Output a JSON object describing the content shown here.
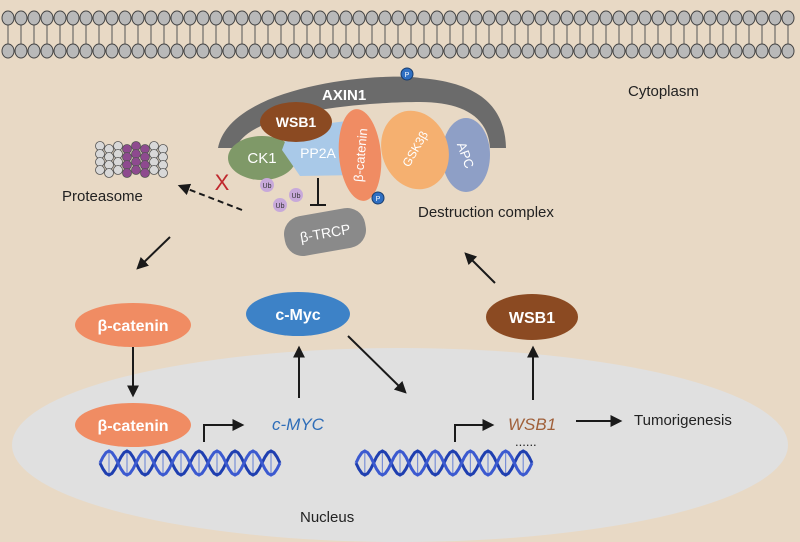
{
  "labels": {
    "cytoplasm": "Cytoplasm",
    "nucleus": "Nucleus",
    "proteasome": "Proteasome",
    "destruction_complex": "Destruction complex",
    "tumorigenesis": "Tumorigenesis"
  },
  "complex": {
    "axin1": "AXIN1",
    "wsb1": "WSB1",
    "ck1": "CK1",
    "pp2a": "PP2A",
    "beta_catenin": "β-catenin",
    "gsk3b": "GSK3β",
    "apc": "APC",
    "btrcp": "β-TRCP",
    "phospho": "P",
    "ub": "Ub",
    "block_mark": "X"
  },
  "nodes": {
    "beta_catenin_cyto": "β-catenin",
    "cmyc_protein": "c-Myc",
    "wsb1_protein": "WSB1",
    "beta_catenin_nuc": "β-catenin",
    "cmyc_gene": "c-MYC",
    "wsb1_gene": "WSB1",
    "ellipsis": "......"
  },
  "colors": {
    "background": "#e8d9c5",
    "nucleus": "#e0e0e0",
    "axin": "#6b6b6b",
    "wsb1": "#8b4a22",
    "ck1": "#7f9968",
    "pp2a": "#a9c9e8",
    "beta_catenin": "#f08c63",
    "gsk3b": "#f5b070",
    "apc": "#8e9fc6",
    "btrcp": "#8a8a8a",
    "cmyc": "#3d82c7",
    "cmyc_gene_text": "#2e6db8",
    "wsb1_gene_text": "#a0603a",
    "phospho": "#2f6fc2",
    "ub": "#c8a9da",
    "block": "#c0282d"
  }
}
